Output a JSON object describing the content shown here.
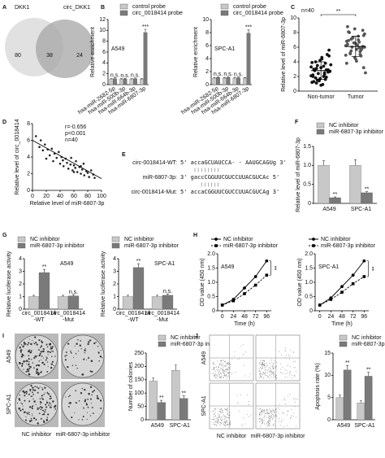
{
  "chart_data": [
    {
      "type": "venn",
      "panel": "A",
      "sets": [
        "DKK1",
        "circ_DKK1"
      ],
      "values": [
        80,
        38,
        24
      ],
      "colors": [
        "#d9d9d9",
        "#a6a6a6"
      ]
    },
    {
      "type": "bar",
      "panel": "B",
      "title": "A549",
      "ylabel": "Relative enrichment",
      "categories": [
        "hsa-miR-2682-5p",
        "hsa-miR-500b-3p",
        "hsa-miR-664b-3p",
        "hsa-miR-6807-3p"
      ],
      "ylim": [
        0,
        12
      ],
      "yticks": [
        0,
        2,
        4,
        6,
        8,
        10,
        12
      ],
      "series": [
        {
          "name": "control probe",
          "color": "#c8c8c8",
          "values": [
            1,
            1,
            1,
            1
          ],
          "errors": [
            0.1,
            0.1,
            0.1,
            0.1
          ]
        },
        {
          "name": "circ_0018414 probe",
          "color": "#7a7a7a",
          "values": [
            1.1,
            1.05,
            1.1,
            9.6
          ],
          "errors": [
            0.15,
            0.1,
            0.12,
            0.6
          ],
          "significance": [
            "n.s.",
            "n.s.",
            "n.s.",
            "***"
          ]
        }
      ]
    },
    {
      "type": "bar",
      "title": "SPC-A1",
      "ylabel": "Relative enrichment",
      "categories": [
        "hsa-miR-2682-5p",
        "hsa-miR-500b-3p",
        "hsa-miR-664b-3p",
        "hsa-miR-6807-3p"
      ],
      "ylim": [
        0,
        10
      ],
      "yticks": [
        0,
        2,
        4,
        6,
        8,
        10
      ],
      "series": [
        {
          "name": "control probe",
          "color": "#c8c8c8",
          "values": [
            1,
            1,
            1,
            1
          ],
          "errors": [
            0.1,
            0.1,
            0.1,
            0.1
          ]
        },
        {
          "name": "circ_0018414 probe",
          "color": "#7a7a7a",
          "values": [
            1.1,
            1.1,
            1.05,
            7.9
          ],
          "errors": [
            0.12,
            0.1,
            0.1,
            0.5
          ],
          "significance": [
            "n.s.",
            "n.s.",
            "n.s.",
            "***"
          ]
        }
      ]
    },
    {
      "type": "strip",
      "panel": "C",
      "ylabel": "Relative level of miR-6807-3p",
      "categories": [
        "Non-tumor",
        "Tumor"
      ],
      "annotation": "n=40",
      "significance": "**",
      "ylim": [
        0,
        10
      ],
      "yticks": [
        0,
        2,
        4,
        6,
        8,
        10
      ],
      "values": [
        [
          2.1,
          3.4,
          1.8,
          2.9,
          4.2,
          1.2,
          2.5,
          3.1,
          5.6,
          0.8,
          2.2,
          3.8,
          1.5,
          2.7,
          4.6,
          3.0,
          1.9,
          2.4,
          3.6,
          0.9,
          2.8,
          5.0,
          1.4,
          3.3,
          2.0,
          4.0,
          2.6,
          1.7,
          3.9,
          2.3,
          1.1,
          4.8,
          3.2,
          2.0,
          1.6,
          3.5,
          2.7,
          4.4,
          1.3,
          2.9
        ],
        [
          6.2,
          7.5,
          5.1,
          8.3,
          4.6,
          6.8,
          5.9,
          7.1,
          3.2,
          6.5,
          8.8,
          5.4,
          6.0,
          7.8,
          4.1,
          6.9,
          5.6,
          7.3,
          2.5,
          6.3,
          8.0,
          5.8,
          6.6,
          4.9,
          7.0,
          5.2,
          6.1,
          8.5,
          3.8,
          6.7,
          5.5,
          7.6,
          4.4,
          6.4,
          5.0,
          7.2,
          6.0,
          5.7,
          8.1,
          4.8
        ]
      ],
      "mean": [
        2.8,
        6.1
      ],
      "sd": [
        1.2,
        1.4
      ]
    },
    {
      "type": "scatter",
      "panel": "D",
      "xlabel": "Relative level of miR-6807-3p",
      "ylabel": "Relative level of circ_0018414",
      "annotations": [
        "r=-0.656",
        "p<0.001",
        "n=40"
      ],
      "xlim": [
        0,
        100
      ],
      "xticks": [
        0,
        20,
        40,
        60,
        80,
        100
      ],
      "ylim": [
        0,
        8
      ],
      "yticks": [
        0,
        2,
        4,
        6,
        8
      ],
      "x": [
        5,
        10,
        12,
        15,
        18,
        20,
        22,
        25,
        28,
        30,
        32,
        35,
        38,
        40,
        42,
        44,
        45,
        48,
        50,
        52,
        55,
        56,
        58,
        60,
        62,
        63,
        65,
        68,
        70,
        72,
        74,
        75,
        78,
        80,
        82,
        85,
        88,
        90,
        70,
        60
      ],
      "y": [
        6.5,
        5.2,
        6.0,
        4.8,
        5.5,
        3.8,
        4.9,
        4.2,
        5.0,
        3.5,
        4.4,
        3.9,
        4.6,
        3.2,
        4.0,
        3.6,
        2.9,
        3.8,
        3.3,
        2.6,
        3.1,
        3.9,
        2.4,
        3.0,
        2.7,
        3.5,
        2.2,
        2.8,
        2.0,
        2.5,
        3.2,
        1.8,
        2.3,
        2.1,
        1.6,
        2.4,
        1.9,
        1.5,
        2.9,
        2.2
      ],
      "fit": {
        "x": [
          0,
          100
        ],
        "y": [
          6.0,
          1.4
        ]
      }
    },
    {
      "type": "sequence",
      "panel": "E",
      "rows": [
        {
          "label": "circ-0018414-WT:",
          "seq": "5' accaGCUAUCCA- - AAUGCAGUg 3'"
        },
        {
          "label": "miR-6807-3p:",
          "seq": "3' gaccCGGUUCGUCCUUACGUCAc 5'"
        },
        {
          "label": "circ-0018414-Mut:",
          "seq": "5' accaCGGUUCGUCCUUACGUCAg 3'"
        }
      ]
    },
    {
      "type": "bar",
      "panel": "F",
      "ylabel": "Relative level of miR-6807-3p",
      "categories": [
        "A549",
        "SPC-A1"
      ],
      "ylim": [
        0,
        1.5
      ],
      "yticks": [
        0,
        0.5,
        {
          "value": 1,
          "label": "1.0"
        },
        1.5
      ],
      "series": [
        {
          "name": "NC inhibitor",
          "color": "#c8c8c8",
          "values": [
            1,
            1
          ],
          "errors": [
            0.12,
            0.15
          ]
        },
        {
          "name": "miR-6807-3p inhibitor",
          "color": "#7a7a7a",
          "values": [
            0.15,
            0.28
          ],
          "errors": [
            0.02,
            0.03
          ],
          "significance": [
            "**",
            "**"
          ]
        }
      ]
    },
    {
      "type": "bar",
      "panel": "G",
      "title": "A549",
      "ylabel": "Relative luciferase activity",
      "categories": [
        "circ_0018414\n-WT",
        "circ_0018414\n-Mut"
      ],
      "ylim": [
        0,
        4
      ],
      "yticks": [
        0,
        1,
        2,
        3,
        4
      ],
      "series": [
        {
          "name": "NC inhibitor",
          "color": "#c8c8c8",
          "values": [
            1,
            1
          ],
          "errors": [
            0.1,
            0.1
          ]
        },
        {
          "name": "miR-6807-3p inhibitor",
          "color": "#7a7a7a",
          "values": [
            2.9,
            1.05
          ],
          "errors": [
            0.25,
            0.1
          ],
          "significance": [
            "**",
            "n.s."
          ]
        }
      ]
    },
    {
      "type": "bar",
      "title": "SPC-A1",
      "ylabel": "Relative luciferase activity",
      "categories": [
        "circ_0018414\n-WT",
        "circ_0018414\n-Mut"
      ],
      "ylim": [
        0,
        4
      ],
      "yticks": [
        0,
        1,
        2,
        3,
        4
      ],
      "series": [
        {
          "name": "NC inhibitor",
          "color": "#c8c8c8",
          "values": [
            1,
            1
          ],
          "errors": [
            0.1,
            0.1
          ]
        },
        {
          "name": "miR-6807-3p inhibitor",
          "color": "#7a7a7a",
          "values": [
            3.3,
            1.1
          ],
          "errors": [
            0.3,
            0.1
          ],
          "significance": [
            "**",
            "n.s."
          ]
        }
      ]
    },
    {
      "type": "line",
      "panel": "H",
      "title": "A549",
      "xlabel": "Time (h)",
      "ylabel": "OD value (450 nm)",
      "significance": "**",
      "x": [
        0,
        24,
        48,
        72,
        96
      ],
      "xlim": [
        -10,
        106
      ],
      "xticks": [
        0,
        24,
        48,
        72,
        96
      ],
      "ylim": [
        0,
        2
      ],
      "yticks": [
        0,
        0.5,
        {
          "value": 1,
          "label": "1.0"
        },
        1.5,
        {
          "value": 2,
          "label": "2.0"
        }
      ],
      "series": [
        {
          "name": "NC inhibitor",
          "color": "#000000",
          "marker": "circle",
          "dash": false,
          "values": [
            0.2,
            0.4,
            0.8,
            1.2,
            1.75
          ]
        },
        {
          "name": "miR-6807-3p inhibitor",
          "color": "#000000",
          "marker": "square",
          "dash": true,
          "values": [
            0.2,
            0.35,
            0.6,
            0.9,
            1.25
          ]
        }
      ]
    },
    {
      "type": "line",
      "title": "SPC-A1",
      "xlabel": "Time (h)",
      "ylabel": "OD value (450 nm)",
      "significance": "**",
      "x": [
        0,
        24,
        48,
        72,
        96
      ],
      "xlim": [
        -10,
        106
      ],
      "xticks": [
        0,
        24,
        48,
        72,
        96
      ],
      "ylim": [
        0,
        2
      ],
      "yticks": [
        0,
        0.5,
        {
          "value": 1,
          "label": "1.0"
        },
        1.5,
        {
          "value": 2,
          "label": "2.0"
        }
      ],
      "series": [
        {
          "name": "NC inhibitor",
          "color": "#000000",
          "marker": "circle",
          "dash": false,
          "values": [
            0.2,
            0.45,
            0.85,
            1.25,
            1.75
          ]
        },
        {
          "name": "miR-6807-3p inhibitor",
          "color": "#000000",
          "marker": "square",
          "dash": true,
          "values": [
            0.2,
            0.4,
            0.65,
            0.95,
            1.2
          ]
        }
      ]
    },
    {
      "type": "bar",
      "panel": "I",
      "image": "colony",
      "row_labels": [
        "A549",
        "SPC-A1"
      ],
      "col_labels": [
        "NC inhibitor",
        "miR-6807-3p inhibitor"
      ],
      "ylabel": "Number of colonies",
      "categories": [
        "A549",
        "SPC-A1"
      ],
      "ylim": [
        0,
        250
      ],
      "yticks": [
        0,
        50,
        100,
        150,
        200,
        250
      ],
      "series": [
        {
          "name": "NC inhibitor",
          "color": "#c8c8c8",
          "values": [
            145,
            185
          ],
          "errors": [
            12,
            20
          ]
        },
        {
          "name": "miR-6807-3p inhibitor",
          "color": "#7a7a7a",
          "values": [
            65,
            80
          ],
          "errors": [
            8,
            10
          ],
          "significance": [
            "**",
            "**"
          ]
        }
      ]
    },
    {
      "type": "bar",
      "panel": "J",
      "image": "flow",
      "row_labels": [
        "A549",
        "SPC-A1"
      ],
      "col_labels": [
        "NC inhibitor",
        "miR-6807-3p inhibitor"
      ],
      "ylabel": "Apoptosis rate (%)",
      "categories": [
        "A549",
        "SPC-A1"
      ],
      "ylim": [
        0,
        15
      ],
      "yticks": [
        0,
        5,
        10,
        15
      ],
      "series": [
        {
          "name": "NC inhibitor",
          "color": "#c8c8c8",
          "values": [
            5,
            3.8
          ],
          "errors": [
            0.6,
            0.5
          ]
        },
        {
          "name": "miR-6807-3p inhibitor",
          "color": "#7a7a7a",
          "values": [
            11.2,
            9.8
          ],
          "errors": [
            1,
            0.9
          ],
          "significance": [
            "**",
            "**"
          ]
        }
      ]
    }
  ]
}
